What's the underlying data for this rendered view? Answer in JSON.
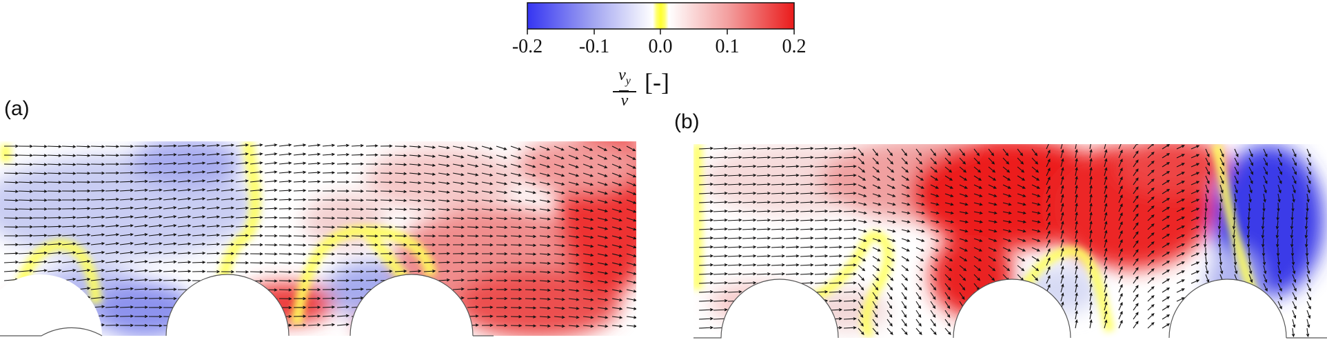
{
  "colorbar": {
    "ticks": [
      "-0.2",
      "-0.1",
      "0.0",
      "0.1",
      "0.2"
    ],
    "title_numerator": "v",
    "title_numerator_sub": "y",
    "title_denominator": "v",
    "unit": "[-]",
    "colors": {
      "negative": "#3a3af0",
      "zero": "#ffff3c",
      "positive": "#ea1f1f"
    }
  },
  "panels": [
    {
      "label": "(a)"
    },
    {
      "label": "(b)"
    }
  ]
}
